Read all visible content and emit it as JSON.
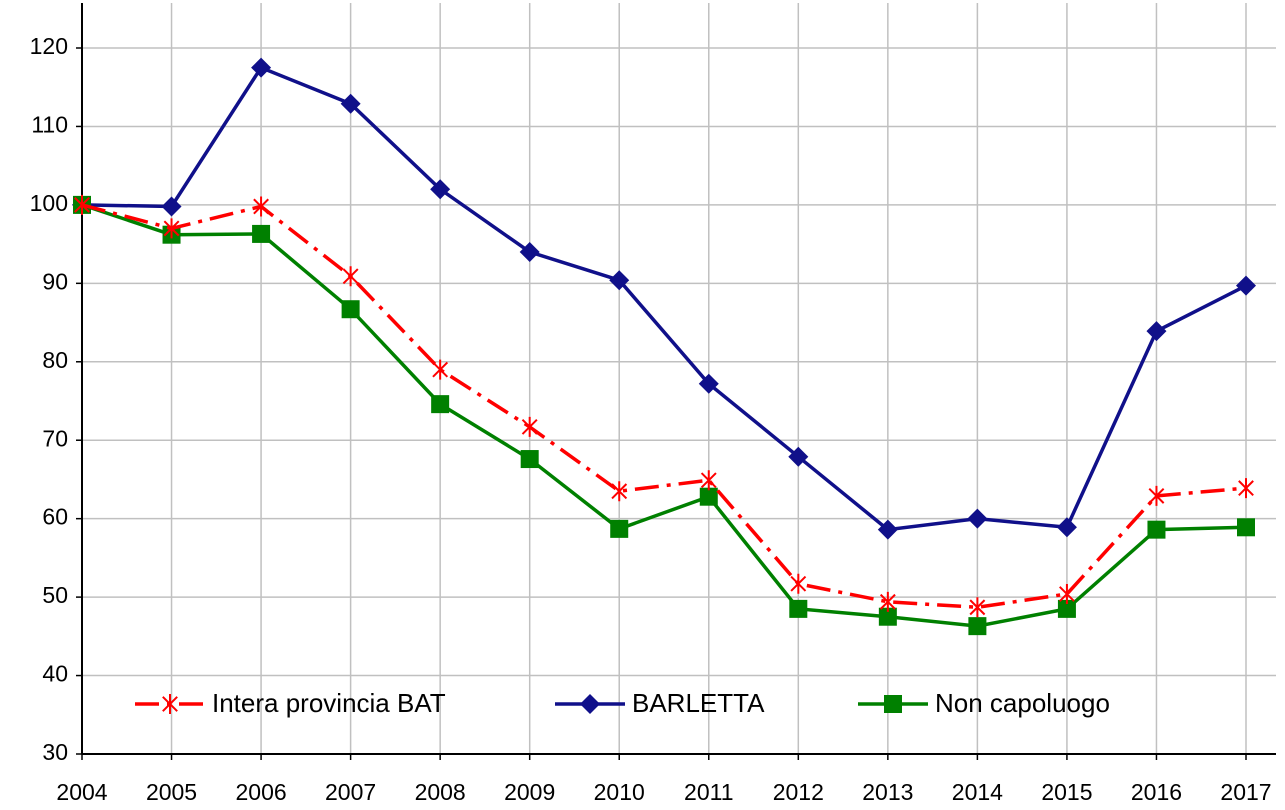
{
  "chart_data": {
    "type": "line",
    "categories": [
      "2004",
      "2005",
      "2006",
      "2007",
      "2008",
      "2009",
      "2010",
      "2011",
      "2012",
      "2013",
      "2014",
      "2015",
      "2016",
      "2017"
    ],
    "series": [
      {
        "name": "Intera provincia BAT",
        "color": "#ff0000",
        "marker": "star",
        "line_style": "dashdot",
        "values": [
          100,
          97,
          99.8,
          90.9,
          79,
          71.7,
          63.5,
          64.9,
          51.7,
          49.4,
          48.7,
          50.4,
          62.9,
          63.9
        ]
      },
      {
        "name": "BARLETTA",
        "color": "#10108a",
        "marker": "diamond",
        "line_style": "solid",
        "values": [
          100,
          99.8,
          117.5,
          112.9,
          102,
          94,
          90.4,
          77.2,
          67.9,
          58.6,
          60,
          58.9,
          83.9,
          89.7
        ]
      },
      {
        "name": "Non capoluogo",
        "color": "#008000",
        "marker": "square",
        "line_style": "solid",
        "values": [
          100,
          96.2,
          96.3,
          86.7,
          74.6,
          67.6,
          58.7,
          62.8,
          48.5,
          47.5,
          46.3,
          48.5,
          58.6,
          58.9
        ]
      }
    ],
    "ylim": [
      30,
      120
    ],
    "yticks": [
      30,
      40,
      50,
      60,
      70,
      80,
      90,
      100,
      110,
      120
    ],
    "grid": true
  }
}
